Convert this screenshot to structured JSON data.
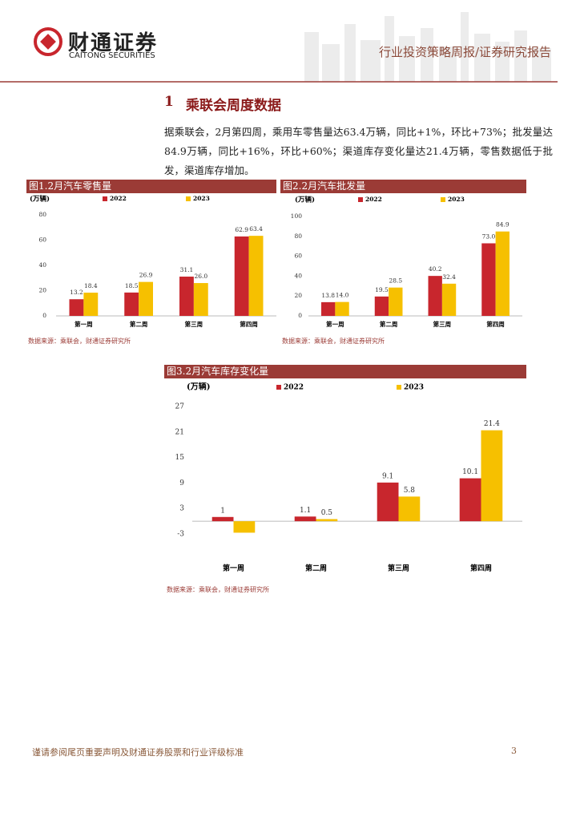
{
  "header": {
    "logo_cn": "财通证券",
    "logo_en": "CAITONG SECURITIES",
    "report_type": "行业投资策略周报/证券研究报告"
  },
  "section": {
    "number": "1",
    "title": "乘联会周度数据"
  },
  "paragraph": "据乘联会，2月第四周，乘用车零售量达63.4万辆，同比+1%，环比+73%；批发量达84.9万辆，同比+16%，环比+60%；渠道库存变化量达21.4万辆，零售数据低于批发，渠道库存增加。",
  "chart_data": [
    {
      "type": "bar",
      "title": "图1.2月汽车零售量",
      "unit": "(万辆)",
      "source": "数据来源：乘联会，财通证券研究所",
      "categories": [
        "第一周",
        "第二周",
        "第三周",
        "第四周"
      ],
      "series": [
        {
          "name": "2022",
          "color": "#c8262d",
          "values": [
            13.2,
            18.5,
            31.1,
            62.9
          ]
        },
        {
          "name": "2023",
          "color": "#f6c000",
          "values": [
            18.4,
            26.9,
            26,
            63.4
          ],
          "value_labels": [
            "18.4",
            "26.9",
            "26.0",
            "63.4"
          ]
        }
      ],
      "ylim": [
        0,
        80
      ],
      "yticks": [
        0,
        20,
        40,
        60,
        80
      ]
    },
    {
      "type": "bar",
      "title": "图2.2月汽车批发量",
      "unit": "(万辆)",
      "source": "数据来源：乘联会，财通证券研究所",
      "categories": [
        "第一周",
        "第二周",
        "第三周",
        "第四周"
      ],
      "series": [
        {
          "name": "2022",
          "color": "#c8262d",
          "values": [
            13.8,
            19.5,
            40.2,
            73
          ],
          "value_labels": [
            "13.8",
            "19.5",
            "40.2",
            "73.0"
          ]
        },
        {
          "name": "2023",
          "color": "#f6c000",
          "values": [
            14,
            28.5,
            32.4,
            84.9
          ],
          "value_labels": [
            "14.0",
            "28.5",
            "32.4",
            "84.9"
          ]
        }
      ],
      "ylim": [
        0,
        100
      ],
      "yticks": [
        0,
        20,
        40,
        60,
        80,
        100
      ]
    },
    {
      "type": "bar",
      "title": "图3.2月汽车库存变化量",
      "unit": "(万辆)",
      "source": "数据来源：乘联会，财通证券研究所",
      "categories": [
        "第一周",
        "第二周",
        "第三周",
        "第四周"
      ],
      "series": [
        {
          "name": "2022",
          "color": "#c8262d",
          "values": [
            1,
            1.1,
            9.1,
            10.1
          ]
        },
        {
          "name": "2023",
          "color": "#f6c000",
          "values": [
            -2.7,
            0.5,
            5.8,
            21.4
          ],
          "value_labels": [
            null,
            "0.5",
            "5.8",
            "21.4"
          ]
        }
      ],
      "ylim": [
        -3,
        27
      ],
      "yticks": [
        -3,
        3,
        9,
        15,
        21,
        27
      ]
    }
  ],
  "footer": {
    "disclaimer": "谨请参阅尾页重要声明及财通证券股票和行业评级标准",
    "page": "3"
  }
}
